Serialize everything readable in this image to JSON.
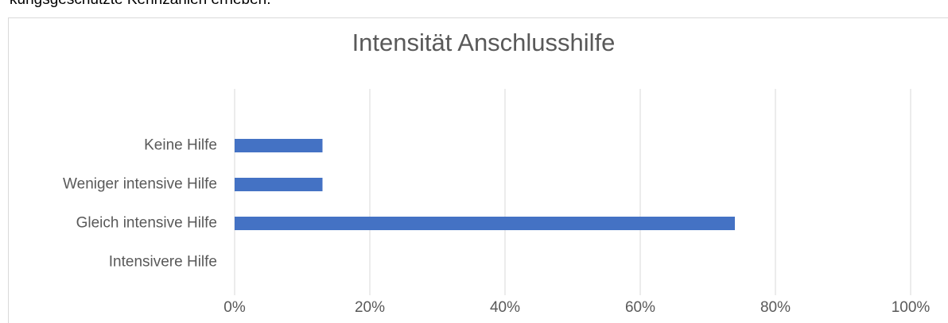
{
  "caption_above": "kungsgeschützte Kennzahlen erheben.",
  "chart_data": {
    "type": "hbar",
    "title": "Intensität Anschlusshilfe",
    "categories": [
      "Keine Hilfe",
      "Weniger intensive Hilfe",
      "Gleich intensive Hilfe",
      "Intensivere Hilfe"
    ],
    "values": [
      13,
      13,
      74,
      0
    ],
    "color": "#4472c4",
    "xlim": [
      0,
      100
    ],
    "xticks": [
      {
        "value": 0,
        "label": "0%"
      },
      {
        "value": 20,
        "label": "20%"
      },
      {
        "value": 40,
        "label": "40%"
      },
      {
        "value": 60,
        "label": "60%"
      },
      {
        "value": 80,
        "label": "80%"
      },
      {
        "value": 100,
        "label": "100%"
      }
    ],
    "grid": true
  }
}
